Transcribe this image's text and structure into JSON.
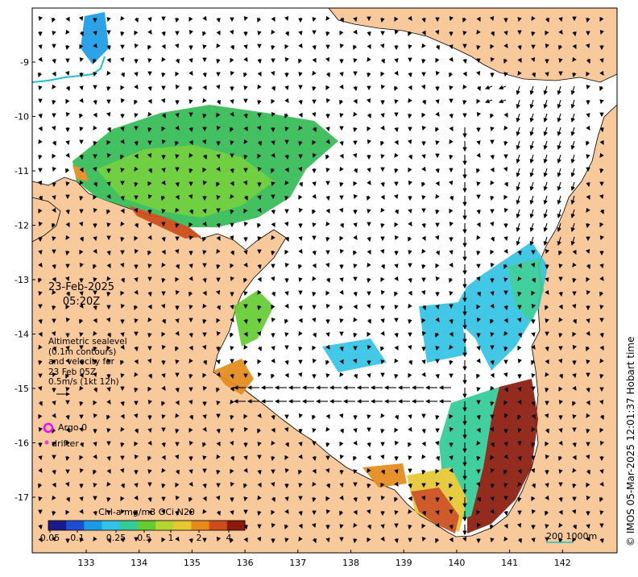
{
  "map": {
    "date_line1": "23-Feb-2025",
    "date_line2": "05:20Z",
    "description": [
      "Altimetric sealevel",
      "(0.1m contours)",
      "and velocity for",
      "23 Feb 05Z",
      "0.5m/s (1kt 12h)"
    ],
    "legend": {
      "argo_label": "Argo 0",
      "drifter_label": "drifter",
      "argo_color": "#ff00ff",
      "drifter_color": "#e040e0"
    },
    "colorbar": {
      "title": "Chl-a mg/m3 OCi N20",
      "tick_labels": [
        "0.05",
        "0.1",
        "0.25",
        "0.5",
        "1",
        "2",
        "4"
      ],
      "colors": [
        "#1a1a8c",
        "#1a4fd0",
        "#1a9be6",
        "#33c3e6",
        "#33cc99",
        "#66cc33",
        "#b3d633",
        "#e6c833",
        "#e68a1a",
        "#cc4d1a",
        "#8c1a0d"
      ]
    },
    "lon_ticks": [
      "133",
      "134",
      "135",
      "136",
      "137",
      "138",
      "139",
      "140",
      "141",
      "142"
    ],
    "lat_ticks": [
      "-9",
      "-10",
      "-11",
      "-12",
      "-13",
      "-14",
      "-15",
      "-16",
      "-17"
    ],
    "scale_label": "200  1000m",
    "copyright": "© IMOS 05-Mar-2025 12:01:37 Hobart time",
    "colors": {
      "land": "#f8c99b",
      "ocean": "#ffffff",
      "river": "#20c0c8",
      "arrow": "#000000"
    }
  }
}
